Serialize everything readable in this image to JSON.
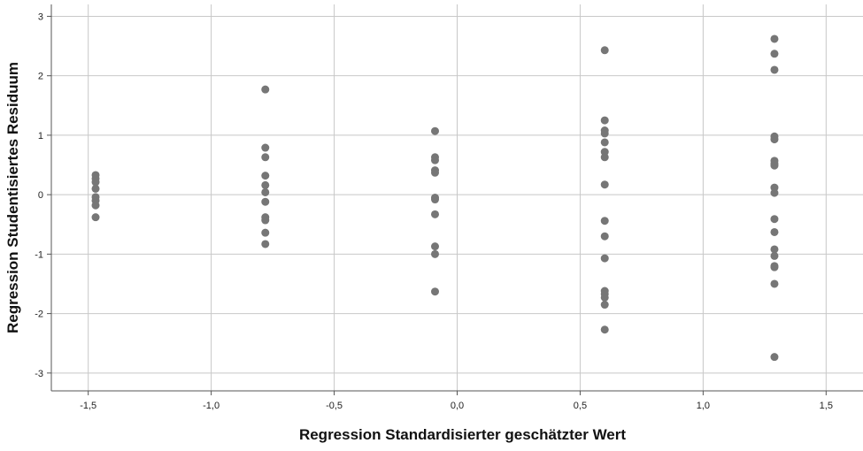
{
  "chart_data": {
    "type": "scatter",
    "xlabel": "Regression Standardisierter geschätzter Wert",
    "ylabel": "Regression Studentisiertes Residuum",
    "xlim": [
      -1.65,
      1.65
    ],
    "ylim": [
      -3.3,
      3.2
    ],
    "x_ticks": [
      -1.5,
      -1.0,
      -0.5,
      0.0,
      0.5,
      1.0,
      1.5
    ],
    "x_tick_labels": [
      "-1,5",
      "-1,0",
      "-0,5",
      "0,0",
      "0,5",
      "1,0",
      "1,5"
    ],
    "y_ticks": [
      3,
      2,
      1,
      0,
      -1,
      -2,
      -3
    ],
    "y_tick_labels": [
      "3",
      "2",
      "1",
      "0",
      "-1",
      "-2",
      "-3"
    ],
    "grid": true,
    "point_color": "#767676",
    "series": [
      {
        "points": [
          [
            -1.47,
            0.33
          ],
          [
            -1.47,
            0.27
          ],
          [
            -1.47,
            0.21
          ],
          [
            -1.47,
            0.1
          ],
          [
            -1.47,
            -0.04
          ],
          [
            -1.47,
            -0.1
          ],
          [
            -1.47,
            -0.18
          ],
          [
            -1.47,
            -0.38
          ],
          [
            -0.78,
            1.77
          ],
          [
            -0.78,
            0.79
          ],
          [
            -0.78,
            0.63
          ],
          [
            -0.78,
            0.32
          ],
          [
            -0.78,
            0.16
          ],
          [
            -0.78,
            0.04
          ],
          [
            -0.78,
            -0.12
          ],
          [
            -0.78,
            -0.38
          ],
          [
            -0.78,
            -0.43
          ],
          [
            -0.78,
            -0.64
          ],
          [
            -0.78,
            -0.83
          ],
          [
            -0.09,
            1.07
          ],
          [
            -0.09,
            0.63
          ],
          [
            -0.09,
            0.58
          ],
          [
            -0.09,
            0.41
          ],
          [
            -0.09,
            0.37
          ],
          [
            -0.09,
            -0.05
          ],
          [
            -0.09,
            -0.08
          ],
          [
            -0.09,
            -0.33
          ],
          [
            -0.09,
            -0.87
          ],
          [
            -0.09,
            -1.0
          ],
          [
            -0.09,
            -1.63
          ],
          [
            0.6,
            2.43
          ],
          [
            0.6,
            1.25
          ],
          [
            0.6,
            1.08
          ],
          [
            0.6,
            1.03
          ],
          [
            0.6,
            0.88
          ],
          [
            0.6,
            0.72
          ],
          [
            0.6,
            0.63
          ],
          [
            0.6,
            0.17
          ],
          [
            0.6,
            -0.44
          ],
          [
            0.6,
            -0.7
          ],
          [
            0.6,
            -1.07
          ],
          [
            0.6,
            -1.62
          ],
          [
            0.6,
            -1.67
          ],
          [
            0.6,
            -1.73
          ],
          [
            0.6,
            -1.85
          ],
          [
            0.6,
            -2.27
          ],
          [
            1.29,
            2.62
          ],
          [
            1.29,
            2.37
          ],
          [
            1.29,
            2.1
          ],
          [
            1.29,
            0.98
          ],
          [
            1.29,
            0.93
          ],
          [
            1.29,
            0.57
          ],
          [
            1.29,
            0.52
          ],
          [
            1.29,
            0.49
          ],
          [
            1.29,
            0.12
          ],
          [
            1.29,
            0.03
          ],
          [
            1.29,
            -0.41
          ],
          [
            1.29,
            -0.63
          ],
          [
            1.29,
            -0.92
          ],
          [
            1.29,
            -1.03
          ],
          [
            1.29,
            -1.2
          ],
          [
            1.29,
            -1.22
          ],
          [
            1.29,
            -1.5
          ],
          [
            1.29,
            -2.73
          ]
        ]
      }
    ]
  }
}
